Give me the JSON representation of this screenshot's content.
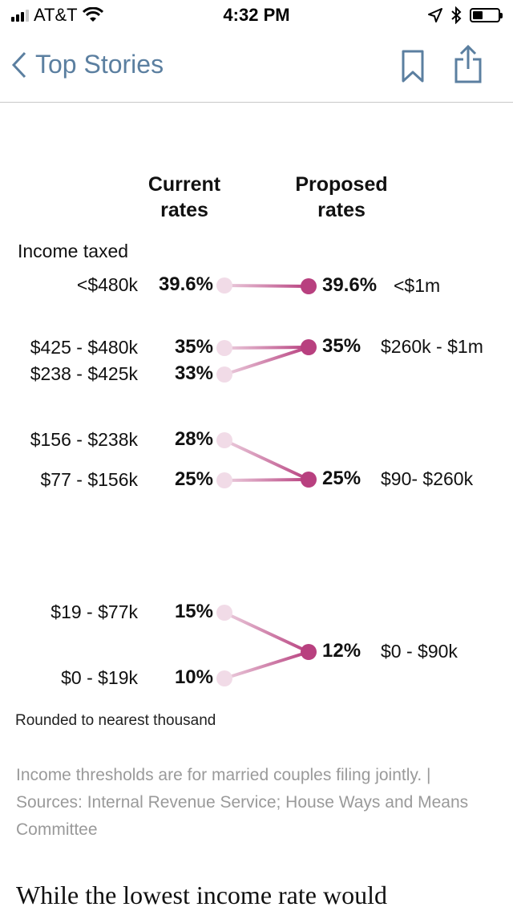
{
  "status_bar": {
    "carrier": "AT&T",
    "time": "4:32 PM"
  },
  "nav": {
    "back_label": "Top Stories"
  },
  "chart_data": {
    "type": "slope",
    "headers": {
      "current_line1": "Current",
      "current_line2": "rates",
      "proposed_line1": "Proposed",
      "proposed_line2": "rates"
    },
    "income_label": "Income taxed",
    "current": [
      {
        "bracket": "<$480k",
        "rate": 39.6,
        "rate_label": "39.6%"
      },
      {
        "bracket": "$425 - $480k",
        "rate": 35,
        "rate_label": "35%"
      },
      {
        "bracket": "$238 - $425k",
        "rate": 33,
        "rate_label": "33%"
      },
      {
        "bracket": "$156 - $238k",
        "rate": 28,
        "rate_label": "28%"
      },
      {
        "bracket": "$77 - $156k",
        "rate": 25,
        "rate_label": "25%"
      },
      {
        "bracket": "$19 - $77k",
        "rate": 15,
        "rate_label": "15%"
      },
      {
        "bracket": "$0 - $19k",
        "rate": 10,
        "rate_label": "10%"
      }
    ],
    "proposed": [
      {
        "bracket": "<$1m",
        "rate": 39.6,
        "rate_label": "39.6%"
      },
      {
        "bracket": "$260k - $1m",
        "rate": 35,
        "rate_label": "35%"
      },
      {
        "bracket": "$90- $260k",
        "rate": 25,
        "rate_label": "25%"
      },
      {
        "bracket": "$0 - $90k",
        "rate": 12,
        "rate_label": "12%"
      }
    ],
    "links": [
      [
        0,
        0
      ],
      [
        1,
        1
      ],
      [
        2,
        1
      ],
      [
        3,
        2
      ],
      [
        4,
        2
      ],
      [
        5,
        3
      ],
      [
        6,
        3
      ]
    ],
    "colors": {
      "current_dot": "#f1dbe7",
      "proposed_dot": "#b8407f"
    }
  },
  "note": "Rounded to nearest thousand",
  "source": "Income thresholds are for married couples filing jointly. | Sources: Internal Revenue Service; House Ways and Means Committee",
  "story_text": "While the lowest income rate would"
}
